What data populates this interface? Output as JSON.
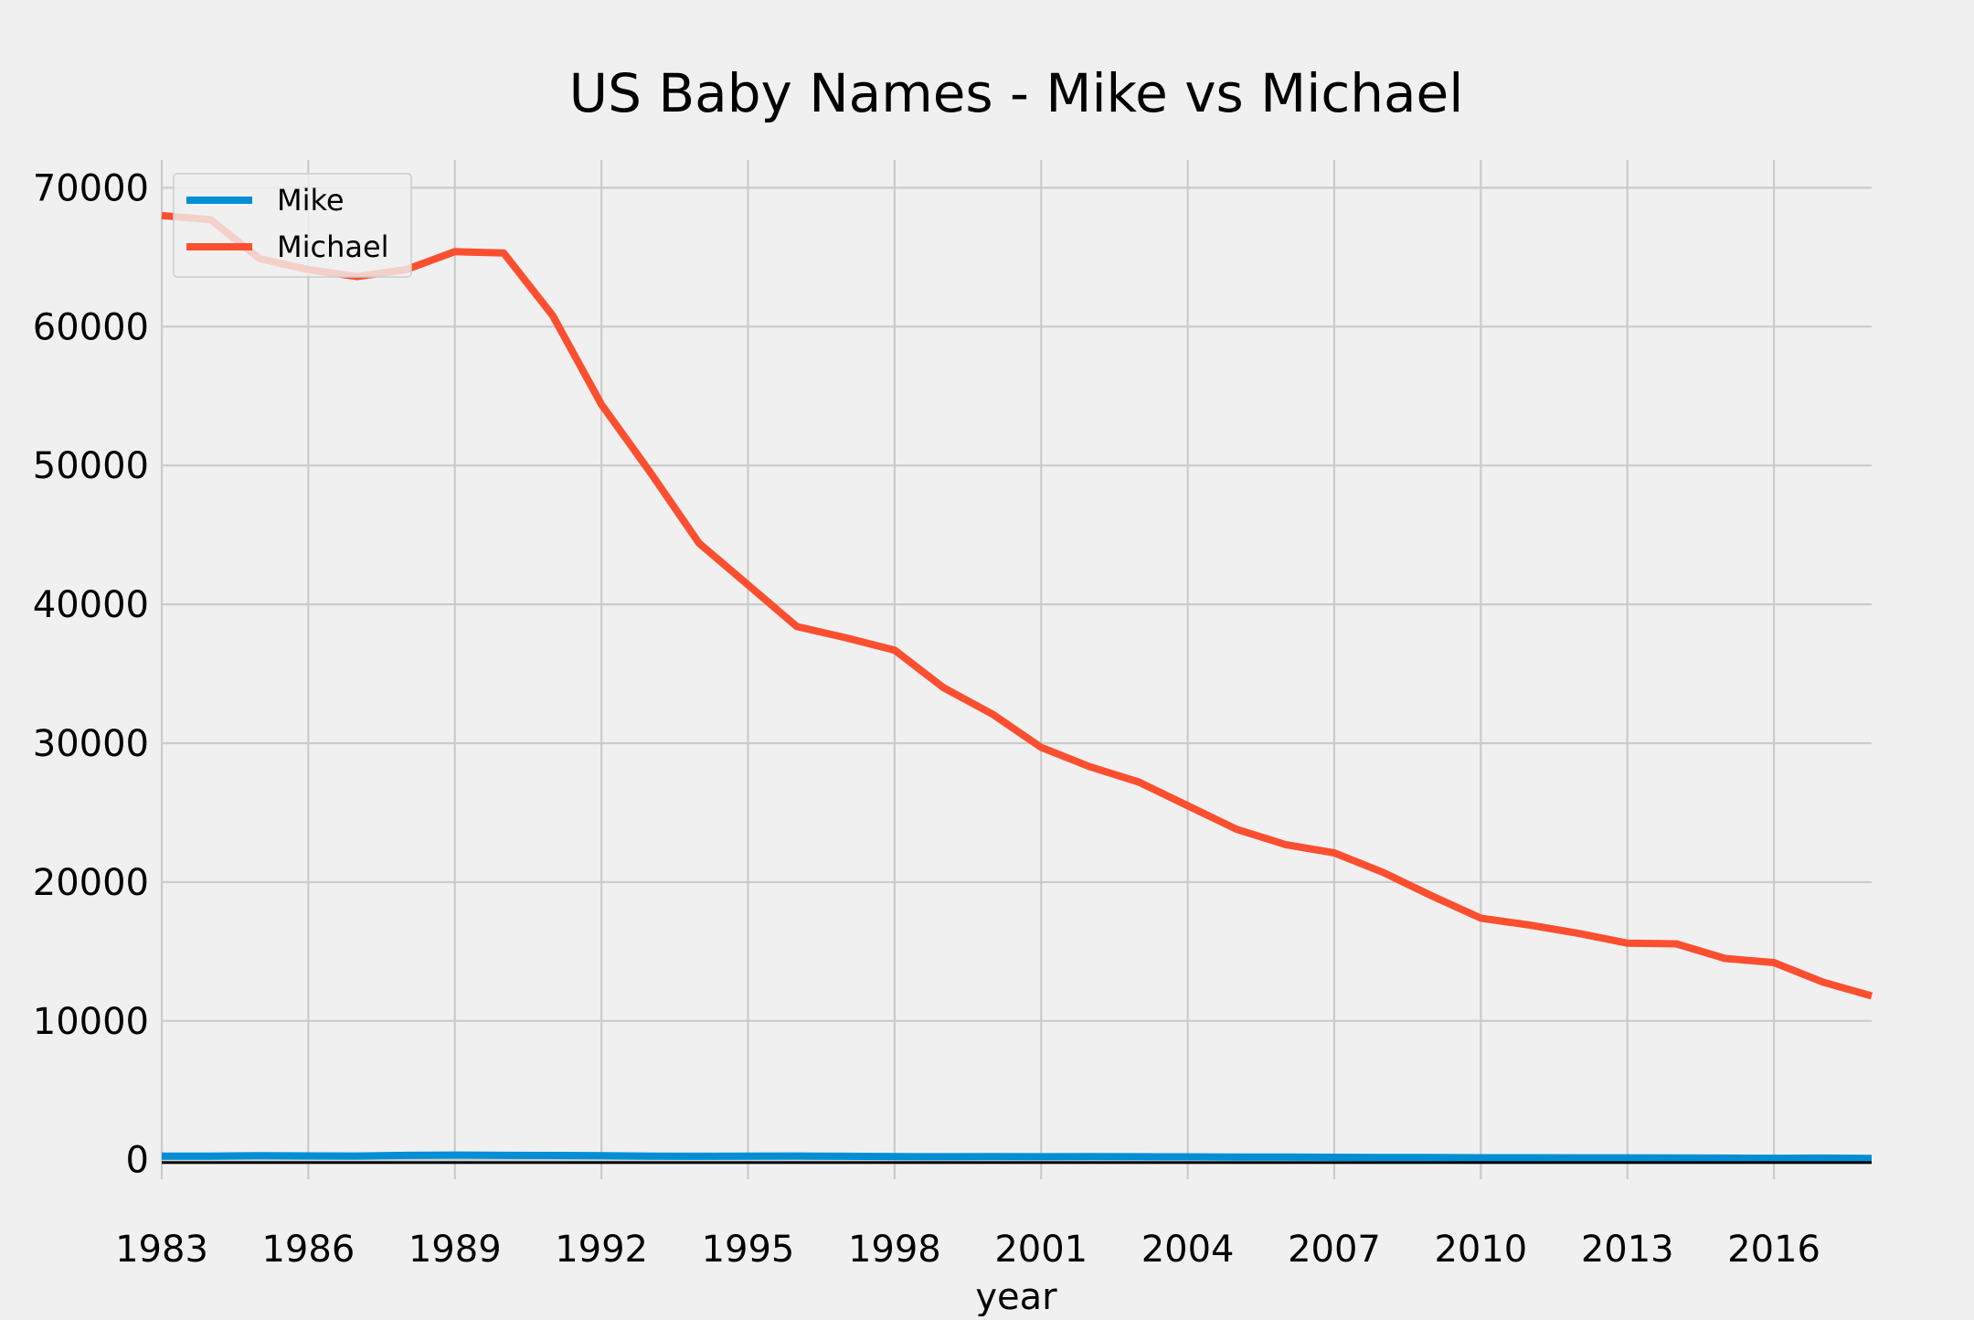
{
  "chart_data": {
    "type": "line",
    "title": "US Baby Names - Mike vs Michael",
    "xlabel": "year",
    "ylabel": "",
    "x": [
      1983,
      1984,
      1985,
      1986,
      1987,
      1988,
      1989,
      1990,
      1991,
      1992,
      1993,
      1994,
      1995,
      1996,
      1997,
      1998,
      1999,
      2000,
      2001,
      2002,
      2003,
      2004,
      2005,
      2006,
      2007,
      2008,
      2009,
      2010,
      2011,
      2012,
      2013,
      2014,
      2015,
      2016,
      2017,
      2018
    ],
    "x_ticks": [
      "1983",
      "1986",
      "1989",
      "1992",
      "1995",
      "1998",
      "2001",
      "2004",
      "2007",
      "2010",
      "2013",
      "2016"
    ],
    "y_ticks": [
      "0",
      "10000",
      "20000",
      "30000",
      "40000",
      "50000",
      "60000",
      "70000"
    ],
    "xlim": [
      1983,
      2018
    ],
    "ylim": [
      -1400,
      72000
    ],
    "grid": true,
    "legend_position": "top-left",
    "series": [
      {
        "name": "Mike",
        "color": "#008fd5",
        "values": [
          260,
          260,
          300,
          280,
          270,
          320,
          340,
          320,
          310,
          290,
          260,
          250,
          260,
          270,
          250,
          230,
          220,
          230,
          220,
          230,
          220,
          210,
          200,
          190,
          180,
          170,
          160,
          150,
          150,
          140,
          140,
          130,
          120,
          110,
          120,
          100
        ]
      },
      {
        "name": "Michael",
        "color": "#fc4f30",
        "values": [
          68000,
          67700,
          64900,
          64100,
          63600,
          64100,
          65400,
          65300,
          60800,
          54400,
          49500,
          44400,
          41400,
          38400,
          37600,
          36700,
          34000,
          32100,
          29700,
          28300,
          27200,
          25500,
          23800,
          22700,
          22100,
          20700,
          19000,
          17400,
          16900,
          16300,
          15600,
          15550,
          14500,
          14200,
          12800,
          11800
        ]
      }
    ]
  }
}
